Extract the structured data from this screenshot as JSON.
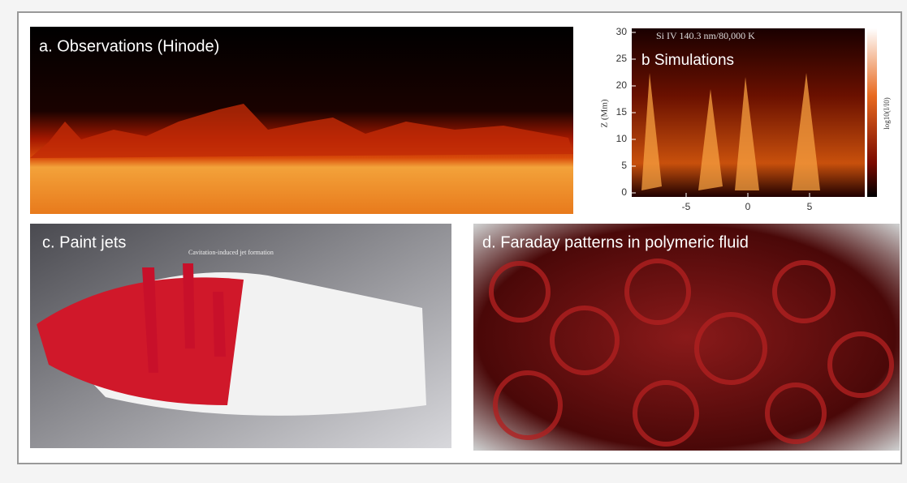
{
  "panels": [
    {
      "label": "a. Observations (Hinode)"
    },
    {
      "label": "b Simulations",
      "annotation": "Si IV 140.3 nm/80,000 K",
      "y_axis_label": "Z (Mm)",
      "colorbar_label": "log10(I/I0)",
      "yticks": [
        30,
        25,
        20,
        15,
        10,
        5,
        0
      ],
      "xticks": [
        -5,
        0,
        5
      ]
    },
    {
      "label": "c. Paint jets",
      "annotation": "Cavitation-induced jet formation"
    },
    {
      "label": "d. Faraday patterns in polymeric fluid"
    }
  ]
}
